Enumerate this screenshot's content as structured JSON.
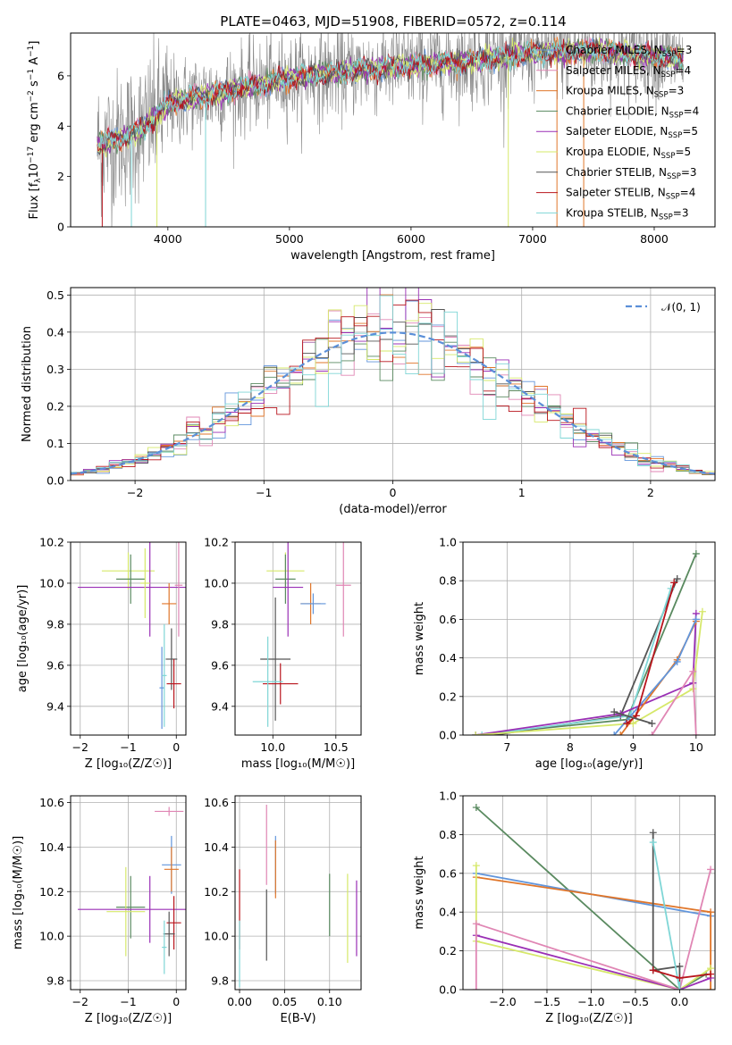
{
  "figure_title": "PLATE=0463, MJD=51908, FIBERID=0572, z=0.114",
  "colors": {
    "Chabrier MILES": "#6195db",
    "Salpeter MILES": "#e086b4",
    "Kroupa MILES": "#e0762a",
    "Chabrier ELODIE": "#5a8a60",
    "Salpeter ELODIE": "#9a2fb5",
    "Kroupa ELODIE": "#d6e86a",
    "Chabrier STELIB": "#555555",
    "Salpeter STELIB": "#b8141c",
    "Kroupa STELIB": "#7fd6d6",
    "gaussian": "#5b8fd8",
    "grid": "#b0b0b0",
    "spectrum_gray": "#8a8a8a"
  },
  "chart_data": [
    {
      "type": "line",
      "id": "spectrum",
      "xlabel": "wavelength [Angstrom, rest frame]",
      "ylabel_pre": "Flux [f",
      "ylabel_sub": "λ",
      "ylabel_mid": "10",
      "ylabel_sup1": "−17",
      "ylabel_post": " erg cm",
      "ylabel_sup2": "−2",
      "ylabel_s": " s",
      "ylabel_sup3": "−1",
      "ylabel_A": " A",
      "ylabel_sup4": "−1",
      "ylabel_end": "]",
      "xlim": [
        3200,
        8500
      ],
      "ylim": [
        0,
        7.7
      ],
      "xticks": [
        "4000",
        "5000",
        "6000",
        "7000",
        "8000"
      ],
      "yticks": [
        "0",
        "2",
        "4",
        "6"
      ],
      "legend": [
        {
          "name": "Chabrier MILES, N",
          "sub": "SSP",
          "tail": "=3"
        },
        {
          "name": "Salpeter MILES, N",
          "sub": "SSP",
          "tail": "=4"
        },
        {
          "name": "Kroupa MILES, N",
          "sub": "SSP",
          "tail": "=3"
        },
        {
          "name": "Chabrier ELODIE, N",
          "sub": "SSP",
          "tail": "=4"
        },
        {
          "name": "Salpeter ELODIE, N",
          "sub": "SSP",
          "tail": "=5"
        },
        {
          "name": "Kroupa ELODIE, N",
          "sub": "SSP",
          "tail": "=5"
        },
        {
          "name": "Chabrier STELIB, N",
          "sub": "SSP",
          "tail": "=3"
        },
        {
          "name": "Salpeter STELIB, N",
          "sub": "SSP",
          "tail": "=4"
        },
        {
          "name": "Kroupa STELIB, N",
          "sub": "SSP",
          "tail": "=3"
        }
      ],
      "legend_placement": "right",
      "continuum": {
        "x": [
          3400,
          3600,
          3800,
          4000,
          4300,
          4700,
          5000,
          5500,
          6000,
          6500,
          7000,
          7500,
          8000,
          8250
        ],
        "y": [
          3.2,
          3.5,
          3.9,
          4.9,
          5.2,
          5.6,
          5.9,
          6.2,
          6.4,
          6.6,
          6.9,
          7.0,
          6.8,
          6.6
        ]
      }
    },
    {
      "type": "step",
      "id": "residual_hist",
      "xlabel": "(data-model)/error",
      "ylabel": "Normed distribution",
      "xlim": [
        -2.5,
        2.5
      ],
      "ylim": [
        0,
        0.52
      ],
      "xticks": [
        "−2",
        "−1",
        "0",
        "1",
        "2"
      ],
      "xtick_values": [
        -2,
        -1,
        0,
        1,
        2
      ],
      "yticks": [
        "0.0",
        "0.1",
        "0.2",
        "0.3",
        "0.4",
        "0.5"
      ],
      "ytick_values": [
        0,
        0.1,
        0.2,
        0.3,
        0.4,
        0.5
      ],
      "grid": true,
      "legend_label": "𝒩(0, 1)",
      "legend_placement": "top-right",
      "bin_width": 0.1
    },
    {
      "type": "scatter",
      "id": "age_vs_Z",
      "xlabel": "Z [log₁₀(Z/Z☉)]",
      "ylabel": "age  [log₁₀(age/yr)]",
      "xlim": [
        -2.2,
        0.2
      ],
      "ylim": [
        9.26,
        10.2
      ],
      "xticks": [
        "−2",
        "−1",
        "0"
      ],
      "xtick_values": [
        -2,
        -1,
        0
      ],
      "yticks": [
        "9.4",
        "9.6",
        "9.8",
        "10.0",
        "10.2"
      ],
      "ytick_values": [
        9.4,
        9.6,
        9.8,
        10.0,
        10.2
      ],
      "points": [
        {
          "model": "Kroupa ELODIE",
          "x": -1.0,
          "y": 10.06,
          "xerr": 0.55,
          "yerr": 0.09
        },
        {
          "model": "Chabrier ELODIE",
          "x": -0.95,
          "y": 10.02,
          "xerr": 0.3,
          "yerr": 0.12
        },
        {
          "model": "Salpeter ELODIE",
          "x": -0.55,
          "y": 9.98,
          "xerr": 1.5,
          "yerr": 0.24
        },
        {
          "model": "Kroupa ELODIE",
          "x": -0.65,
          "y": 10.0,
          "xerr": 0.1,
          "yerr": 0.17
        },
        {
          "model": "Salpeter MILES",
          "x": 0.05,
          "y": 9.99,
          "xerr": 0.08,
          "yerr": 0.25
        },
        {
          "model": "Chabrier MILES",
          "x": -0.3,
          "y": 9.49,
          "xerr": 0.05,
          "yerr": 0.2
        },
        {
          "model": "Kroupa MILES",
          "x": -0.15,
          "y": 9.9,
          "xerr": 0.15,
          "yerr": 0.1
        },
        {
          "model": "Chabrier STELIB",
          "x": -0.1,
          "y": 9.63,
          "xerr": 0.12,
          "yerr": 0.15
        },
        {
          "model": "Salpeter STELIB",
          "x": -0.05,
          "y": 9.51,
          "xerr": 0.15,
          "yerr": 0.12
        },
        {
          "model": "Kroupa STELIB",
          "x": -0.25,
          "y": 9.55,
          "xerr": 0.05,
          "yerr": 0.25
        }
      ]
    },
    {
      "type": "scatter",
      "id": "age_vs_mass",
      "xlabel": "mass [log₁₀(M/M☉)]",
      "xlim": [
        9.7,
        10.7
      ],
      "ylim": [
        9.26,
        10.2
      ],
      "xticks": [
        "10.0",
        "10.5"
      ],
      "xtick_values": [
        10.0,
        10.5
      ],
      "yticks": [
        "9.4",
        "9.6",
        "9.8",
        "10.0",
        "10.2"
      ],
      "ytick_values": [
        9.4,
        9.6,
        9.8,
        10.0,
        10.2
      ],
      "points": [
        {
          "model": "Kroupa ELODIE",
          "x": 10.1,
          "y": 10.06,
          "xerr": 0.15,
          "yerr": 0.09
        },
        {
          "model": "Chabrier ELODIE",
          "x": 10.1,
          "y": 10.02,
          "xerr": 0.08,
          "yerr": 0.12
        },
        {
          "model": "Salpeter ELODIE",
          "x": 10.12,
          "y": 9.98,
          "xerr": 0.12,
          "yerr": 0.24
        },
        {
          "model": "Salpeter MILES",
          "x": 10.56,
          "y": 9.99,
          "xerr": 0.06,
          "yerr": 0.25
        },
        {
          "model": "Kroupa MILES",
          "x": 10.3,
          "y": 9.9,
          "xerr": 0.08,
          "yerr": 0.1
        },
        {
          "model": "Chabrier MILES",
          "x": 10.32,
          "y": 9.9,
          "xerr": 0.1,
          "yerr": 0.05
        },
        {
          "model": "Chabrier STELIB",
          "x": 10.02,
          "y": 9.63,
          "xerr": 0.12,
          "yerr": 0.3
        },
        {
          "model": "Salpeter STELIB",
          "x": 10.06,
          "y": 9.51,
          "xerr": 0.14,
          "yerr": 0.1
        },
        {
          "model": "Kroupa STELIB",
          "x": 9.96,
          "y": 9.52,
          "xerr": 0.12,
          "yerr": 0.22
        }
      ]
    },
    {
      "type": "line",
      "id": "weight_vs_age",
      "xlabel": "age  [log₁₀(age/yr)]",
      "ylabel": "mass weight",
      "xlim": [
        6.3,
        10.3
      ],
      "ylim": [
        0,
        1.0
      ],
      "xticks": [
        "7",
        "8",
        "9",
        "10"
      ],
      "xtick_values": [
        7,
        8,
        9,
        10
      ],
      "yticks": [
        "0.0",
        "0.2",
        "0.4",
        "0.6",
        "0.8",
        "1.0"
      ],
      "ytick_values": [
        0,
        0.2,
        0.4,
        0.6,
        0.8,
        1.0
      ],
      "series": [
        {
          "model": "Chabrier ELODIE",
          "x": [
            6.5,
            8.9,
            10.0
          ],
          "y": [
            0.0,
            0.08,
            0.94
          ]
        },
        {
          "model": "Chabrier STELIB",
          "x": [
            6.8,
            8.8,
            9.7
          ],
          "y": [
            0.0,
            0.1,
            0.81
          ]
        },
        {
          "model": "Kroupa STELIB",
          "x": [
            6.6,
            8.95,
            9.6
          ],
          "y": [
            0.0,
            0.1,
            0.76
          ]
        },
        {
          "model": "Salpeter ELODIE",
          "x": [
            6.5,
            8.8,
            9.95,
            10.0
          ],
          "y": [
            0.0,
            0.11,
            0.27,
            0.63
          ]
        },
        {
          "model": "Kroupa ELODIE",
          "x": [
            6.5,
            9.0,
            9.95,
            10.1
          ],
          "y": [
            0.0,
            0.06,
            0.24,
            0.64
          ]
        },
        {
          "model": "Kroupa MILES",
          "x": [
            8.8,
            9.7,
            10.0
          ],
          "y": [
            0.0,
            0.39,
            0.59
          ]
        },
        {
          "model": "Chabrier MILES",
          "x": [
            8.7,
            9.7,
            10.0
          ],
          "y": [
            0.0,
            0.38,
            0.6
          ]
        },
        {
          "model": "Salpeter STELIB",
          "x": [
            8.9,
            9.05,
            9.65
          ],
          "y": [
            0.06,
            0.1,
            0.79
          ]
        },
        {
          "model": "Salpeter MILES",
          "x": [
            9.3,
            9.95,
            10.0
          ],
          "y": [
            0.0,
            0.33,
            0.0
          ]
        },
        {
          "model": "Chabrier STELIB",
          "x": [
            8.7,
            9.3
          ],
          "y": [
            0.12,
            0.06
          ]
        }
      ]
    },
    {
      "type": "scatter",
      "id": "mass_vs_Z",
      "xlabel": "Z [log₁₀(Z/Z☉)]",
      "ylabel": "mass [log₁₀(M/M☉)]",
      "xlim": [
        -2.2,
        0.2
      ],
      "ylim": [
        9.76,
        10.63
      ],
      "xticks": [
        "−2",
        "−1",
        "0"
      ],
      "xtick_values": [
        -2,
        -1,
        0
      ],
      "yticks": [
        "9.8",
        "10.0",
        "10.2",
        "10.4",
        "10.6"
      ],
      "ytick_values": [
        9.8,
        10.0,
        10.2,
        10.4,
        10.6
      ],
      "points": [
        {
          "model": "Salpeter MILES",
          "x": -0.15,
          "y": 10.56,
          "xerr": 0.3,
          "yerr": 0.02
        },
        {
          "model": "Chabrier MILES",
          "x": -0.1,
          "y": 10.32,
          "xerr": 0.2,
          "yerr": 0.13
        },
        {
          "model": "Kroupa MILES",
          "x": -0.1,
          "y": 10.3,
          "xerr": 0.15,
          "yerr": 0.1
        },
        {
          "model": "Chabrier ELODIE",
          "x": -0.95,
          "y": 10.13,
          "xerr": 0.3,
          "yerr": 0.14
        },
        {
          "model": "Kroupa ELODIE",
          "x": -1.05,
          "y": 10.11,
          "xerr": 0.4,
          "yerr": 0.2
        },
        {
          "model": "Salpeter ELODIE",
          "x": -0.55,
          "y": 10.12,
          "xerr": 1.5,
          "yerr": 0.15
        },
        {
          "model": "Salpeter STELIB",
          "x": -0.05,
          "y": 10.06,
          "xerr": 0.15,
          "yerr": 0.12
        },
        {
          "model": "Chabrier STELIB",
          "x": -0.15,
          "y": 10.01,
          "xerr": 0.12,
          "yerr": 0.1
        },
        {
          "model": "Kroupa STELIB",
          "x": -0.25,
          "y": 9.95,
          "xerr": 0.05,
          "yerr": 0.12
        }
      ]
    },
    {
      "type": "scatter",
      "id": "mass_vs_ebv",
      "xlabel": "E(B-V)",
      "xlim": [
        -0.005,
        0.135
      ],
      "ylim": [
        9.76,
        10.63
      ],
      "xticks": [
        "0.00",
        "0.05",
        "0.10"
      ],
      "xtick_values": [
        0,
        0.05,
        0.1
      ],
      "yticks": [
        "9.8",
        "10.0",
        "10.2",
        "10.4",
        "10.6"
      ],
      "ytick_values": [
        9.8,
        10.0,
        10.2,
        10.4,
        10.6
      ],
      "points": [
        {
          "model": "Salpeter STELIB",
          "x": 0.0,
          "y": 10.12,
          "yerr": 0.18
        },
        {
          "model": "Kroupa STELIB",
          "x": 0.0,
          "y": 9.92,
          "yerr": 0.15
        },
        {
          "model": "Chabrier STELIB",
          "x": 0.03,
          "y": 10.05,
          "yerr": 0.16
        },
        {
          "model": "Salpeter MILES",
          "x": 0.03,
          "y": 10.41,
          "yerr": 0.18
        },
        {
          "model": "Chabrier MILES",
          "x": 0.04,
          "y": 10.32,
          "yerr": 0.13
        },
        {
          "model": "Kroupa MILES",
          "x": 0.04,
          "y": 10.3,
          "yerr": 0.13
        },
        {
          "model": "Chabrier ELODIE",
          "x": 0.1,
          "y": 10.14,
          "yerr": 0.14
        },
        {
          "model": "Kroupa ELODIE",
          "x": 0.12,
          "y": 10.08,
          "yerr": 0.2
        },
        {
          "model": "Salpeter ELODIE",
          "x": 0.13,
          "y": 10.08,
          "yerr": 0.17
        }
      ]
    },
    {
      "type": "line",
      "id": "weight_vs_Z",
      "xlabel": "Z [log₁₀(Z/Z☉)]",
      "ylabel": "mass weight",
      "xlim": [
        -2.45,
        0.4
      ],
      "ylim": [
        0,
        1.0
      ],
      "xticks": [
        "−2.0",
        "−1.5",
        "−1.0",
        "−0.5",
        "0.0"
      ],
      "xtick_values": [
        -2,
        -1.5,
        -1,
        -0.5,
        0
      ],
      "yticks": [
        "0.0",
        "0.2",
        "0.4",
        "0.6",
        "0.8",
        "1.0"
      ],
      "ytick_values": [
        0,
        0.2,
        0.4,
        0.6,
        0.8,
        1.0
      ],
      "series": [
        {
          "model": "Chabrier ELODIE",
          "x": [
            -2.3,
            0.0,
            0.3
          ],
          "y": [
            0.94,
            0.0,
            0.08
          ]
        },
        {
          "model": "Chabrier MILES",
          "x": [
            -2.3,
            0.35
          ],
          "y": [
            0.6,
            0.38
          ]
        },
        {
          "model": "Kroupa MILES",
          "x": [
            -2.3,
            0.35,
            0.35
          ],
          "y": [
            0.58,
            0.4,
            0.0
          ]
        },
        {
          "model": "Kroupa ELODIE",
          "x": [
            -2.3,
            -2.3,
            0.0,
            0.35
          ],
          "y": [
            0.64,
            0.25,
            0.0,
            0.11
          ]
        },
        {
          "model": "Salpeter ELODIE",
          "x": [
            -2.3,
            0.0,
            0.35
          ],
          "y": [
            0.28,
            0.0,
            0.06
          ]
        },
        {
          "model": "Salpeter MILES",
          "x": [
            -2.3,
            -2.3,
            0.0,
            0.35
          ],
          "y": [
            0.0,
            0.34,
            0.0,
            0.62
          ]
        },
        {
          "model": "Chabrier STELIB",
          "x": [
            -0.3,
            -0.3,
            0.0,
            0.0
          ],
          "y": [
            0.81,
            0.1,
            0.12,
            0.0
          ]
        },
        {
          "model": "Kroupa STELIB",
          "x": [
            -0.3,
            0.0,
            0.0
          ],
          "y": [
            0.76,
            0.0,
            0.06
          ]
        },
        {
          "model": "Salpeter STELIB",
          "x": [
            -0.3,
            0.0,
            0.35
          ],
          "y": [
            0.1,
            0.06,
            0.08
          ]
        }
      ]
    }
  ]
}
